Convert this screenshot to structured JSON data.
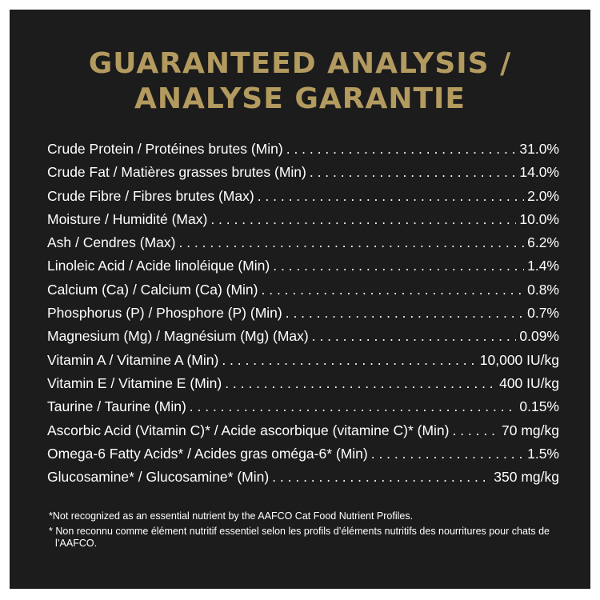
{
  "title": {
    "line1": "GUARANTEED ANALYSIS /",
    "line2": "ANALYSE GARANTIE"
  },
  "colors": {
    "background": "#1c1c1c",
    "title": "#b39a5f",
    "text": "#ffffff"
  },
  "rows": [
    {
      "label": "Crude Protein / Protéines brutes (Min)",
      "value": "31.0%"
    },
    {
      "label": "Crude Fat / Matières grasses brutes (Min)",
      "value": "14.0%"
    },
    {
      "label": "Crude Fibre / Fibres brutes (Max)",
      "value": "2.0%"
    },
    {
      "label": "Moisture / Humidité (Max)",
      "value": "10.0%"
    },
    {
      "label": "Ash / Cendres (Max)",
      "value": "6.2%"
    },
    {
      "label": "Linoleic Acid / Acide linoléique (Min)",
      "value": "1.4%"
    },
    {
      "label": "Calcium (Ca) / Calcium (Ca) (Min)",
      "value": "0.8%"
    },
    {
      "label": "Phosphorus (P) / Phosphore (P) (Min)",
      "value": "0.7%"
    },
    {
      "label": "Magnesium (Mg) / Magnésium (Mg) (Max)",
      "value": "0.09%"
    },
    {
      "label": "Vitamin A / Vitamine A (Min)",
      "value": "10,000 IU/kg"
    },
    {
      "label": "Vitamin E / Vitamine E (Min)",
      "value": "400 IU/kg"
    },
    {
      "label": "Taurine / Taurine (Min)",
      "value": "0.15%"
    },
    {
      "label": "Ascorbic Acid (Vitamin C)* / Acide ascorbique (vitamine C)* (Min)",
      "value": "70 mg/kg"
    },
    {
      "label": "Omega-6 Fatty Acids* / Acides gras oméga-6* (Min)",
      "value": "1.5%"
    },
    {
      "label": "Glucosamine* / Glucosamine* (Min)",
      "value": "350 mg/kg"
    }
  ],
  "footnotes": {
    "english": "*Not recognized as an essential nutrient by the AAFCO Cat Food Nutrient Profiles.",
    "french": "* Non reconnu comme élément nutritif essentiel selon les profils d’éléments nutritifs des nourritures pour chats de l’AAFCO."
  }
}
